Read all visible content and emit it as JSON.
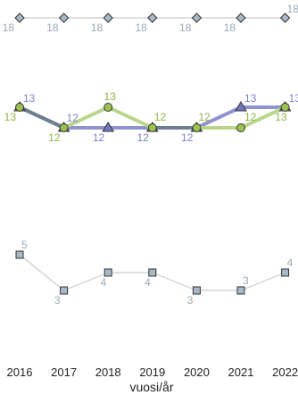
{
  "chart_data": {
    "type": "line",
    "title": "",
    "xlabel": "vuosi/år",
    "ylabel": "",
    "x": [
      2016,
      2017,
      2018,
      2019,
      2020,
      2021,
      2022
    ],
    "x_tick_labels": [
      "2016",
      "2017",
      "2018",
      "2019",
      "2020",
      "2021",
      "2022"
    ],
    "grid": false,
    "legend": "none",
    "series": [
      {
        "marker": "diamond",
        "line_color": "#cccccc",
        "marker_fill": "#a9b8c6",
        "label_color": "#9aa8b6",
        "values": [
          18,
          18,
          18,
          18,
          18,
          18,
          18
        ],
        "data_labels": [
          "18",
          "18",
          "18",
          "18",
          "18",
          "18",
          "18"
        ]
      },
      {
        "marker": "triangle",
        "line_color": "#8f92cc",
        "marker_fill": "#7377c0",
        "label_color": "#7e82c8",
        "values": [
          13,
          12,
          12,
          12,
          12,
          13,
          13
        ],
        "data_labels": [
          "13",
          "12",
          "12",
          "12",
          "12",
          "13",
          "13"
        ]
      },
      {
        "marker": "circle",
        "line_color": "#b9d68c",
        "marker_fill": "#9cc24e",
        "label_color": "#8fb546",
        "values": [
          13,
          12,
          13,
          12,
          12,
          12,
          13
        ],
        "data_labels": [
          "13",
          "12",
          "13",
          "12",
          "12",
          "12",
          "13"
        ]
      },
      {
        "marker": "square",
        "line_color": "#cccccc",
        "marker_fill": "#a9b8c6",
        "label_color": "#9aa8b6",
        "values": [
          5,
          3,
          4,
          4,
          3,
          3,
          4
        ],
        "data_labels": [
          "5",
          "3",
          "4",
          "4",
          "3",
          "3",
          "4"
        ]
      }
    ],
    "overlap_color": "#6e7f93"
  }
}
